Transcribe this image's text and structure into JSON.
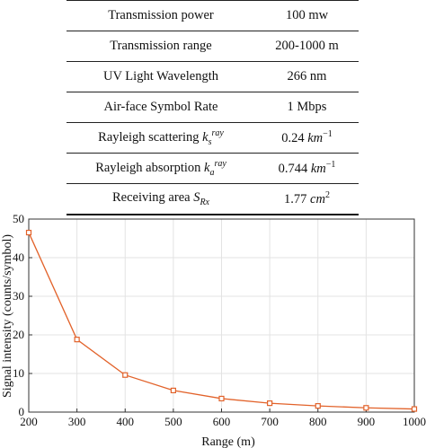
{
  "table": {
    "rows": [
      {
        "name": "Transmission power",
        "value": "100 mw"
      },
      {
        "name": "Transmission range",
        "value": "200-1000 m"
      },
      {
        "name": "UV Light Wavelength",
        "value": "266 nm"
      },
      {
        "name": "Air-face Symbol Rate",
        "value": "1 Mbps"
      },
      {
        "name": "Rayleigh scattering",
        "symbol": "k",
        "sub": "s",
        "sup": "ray",
        "value_num": "0.24",
        "value_unit": "km",
        "value_exp": "−1"
      },
      {
        "name": "Rayleigh absorption",
        "symbol": "k",
        "sub": "a",
        "sup": "ray",
        "value_num": "0.744",
        "value_unit": "km",
        "value_exp": "−1"
      },
      {
        "name": "Receiving area",
        "symbol": "S",
        "sub": "Rx",
        "value_num": "1.77",
        "value_unit": "cm",
        "value_exp": "2"
      }
    ]
  },
  "chart_data": {
    "type": "line",
    "title": "",
    "xlabel": "Range (m)",
    "ylabel": "Signal intensity (counts/symbol)",
    "x": [
      200,
      300,
      400,
      500,
      600,
      700,
      800,
      900,
      1000
    ],
    "xlim": [
      200,
      1000
    ],
    "ylim": [
      0,
      50
    ],
    "xticks": [
      200,
      300,
      400,
      500,
      600,
      700,
      800,
      900,
      1000
    ],
    "yticks": [
      0,
      10,
      20,
      30,
      40,
      50
    ],
    "grid": true,
    "series": [
      {
        "values": [
          46.5,
          18.8,
          9.6,
          5.6,
          3.5,
          2.3,
          1.6,
          1.1,
          0.8
        ],
        "color": "#e2622a",
        "marker": "square"
      }
    ]
  }
}
